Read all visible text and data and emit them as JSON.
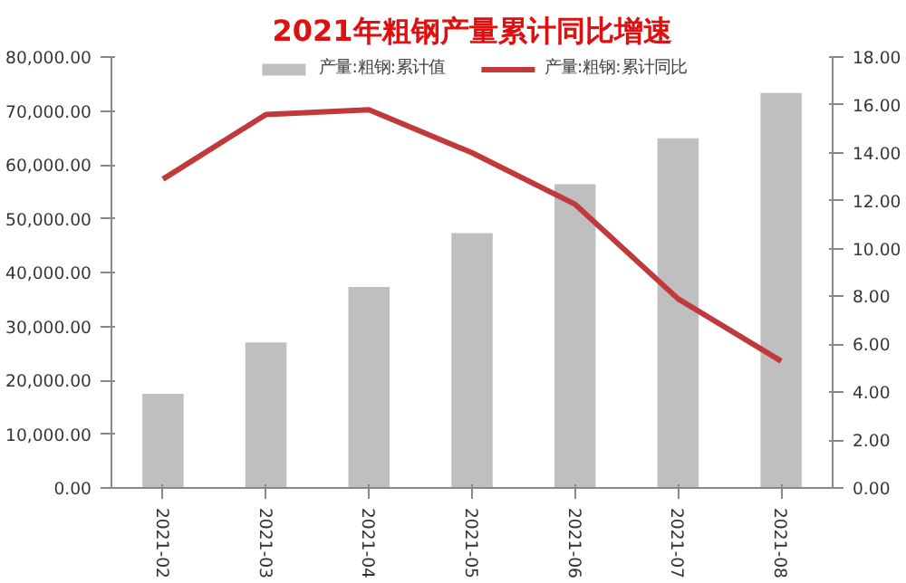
{
  "chart_data": {
    "type": "bar",
    "title": "2021年粗钢产量累计同比增速",
    "categories": [
      "2021-02",
      "2021-03",
      "2021-04",
      "2021-05",
      "2021-06",
      "2021-07",
      "2021-08"
    ],
    "series": [
      {
        "name": "产量:粗钢:累计值",
        "color": "#bfbfbf",
        "values": [
          17500,
          27000,
          37300,
          47300,
          56400,
          64900,
          73300
        ]
      },
      {
        "name": "产量:粗钢:累计同比",
        "type": "line",
        "axis": "y2",
        "color": "#c0393b",
        "values": [
          12.9,
          15.6,
          15.8,
          14.0,
          11.85,
          7.9,
          5.3
        ]
      }
    ],
    "ylim": [
      0,
      80000
    ],
    "yticks": [
      {
        "value": 0,
        "label": "0.00"
      },
      {
        "value": 10000,
        "label": "10,000.00"
      },
      {
        "value": 20000,
        "label": "20,000.00"
      },
      {
        "value": 30000,
        "label": "30,000.00"
      },
      {
        "value": 40000,
        "label": "40,000.00"
      },
      {
        "value": 50000,
        "label": "50,000.00"
      },
      {
        "value": 60000,
        "label": "60,000.00"
      },
      {
        "value": 70000,
        "label": "70,000.00"
      },
      {
        "value": 80000,
        "label": "80,000.00"
      }
    ],
    "y2lim": [
      0,
      18
    ],
    "y2ticks": [
      {
        "value": 0,
        "label": "0.00"
      },
      {
        "value": 2,
        "label": "2.00"
      },
      {
        "value": 4,
        "label": "4.00"
      },
      {
        "value": 6,
        "label": "6.00"
      },
      {
        "value": 8,
        "label": "8.00"
      },
      {
        "value": 10,
        "label": "10.00"
      },
      {
        "value": 12,
        "label": "12.00"
      },
      {
        "value": 14,
        "label": "14.00"
      },
      {
        "value": 16,
        "label": "16.00"
      },
      {
        "value": 18,
        "label": "18.00"
      }
    ],
    "grid": false,
    "legend": "top"
  }
}
